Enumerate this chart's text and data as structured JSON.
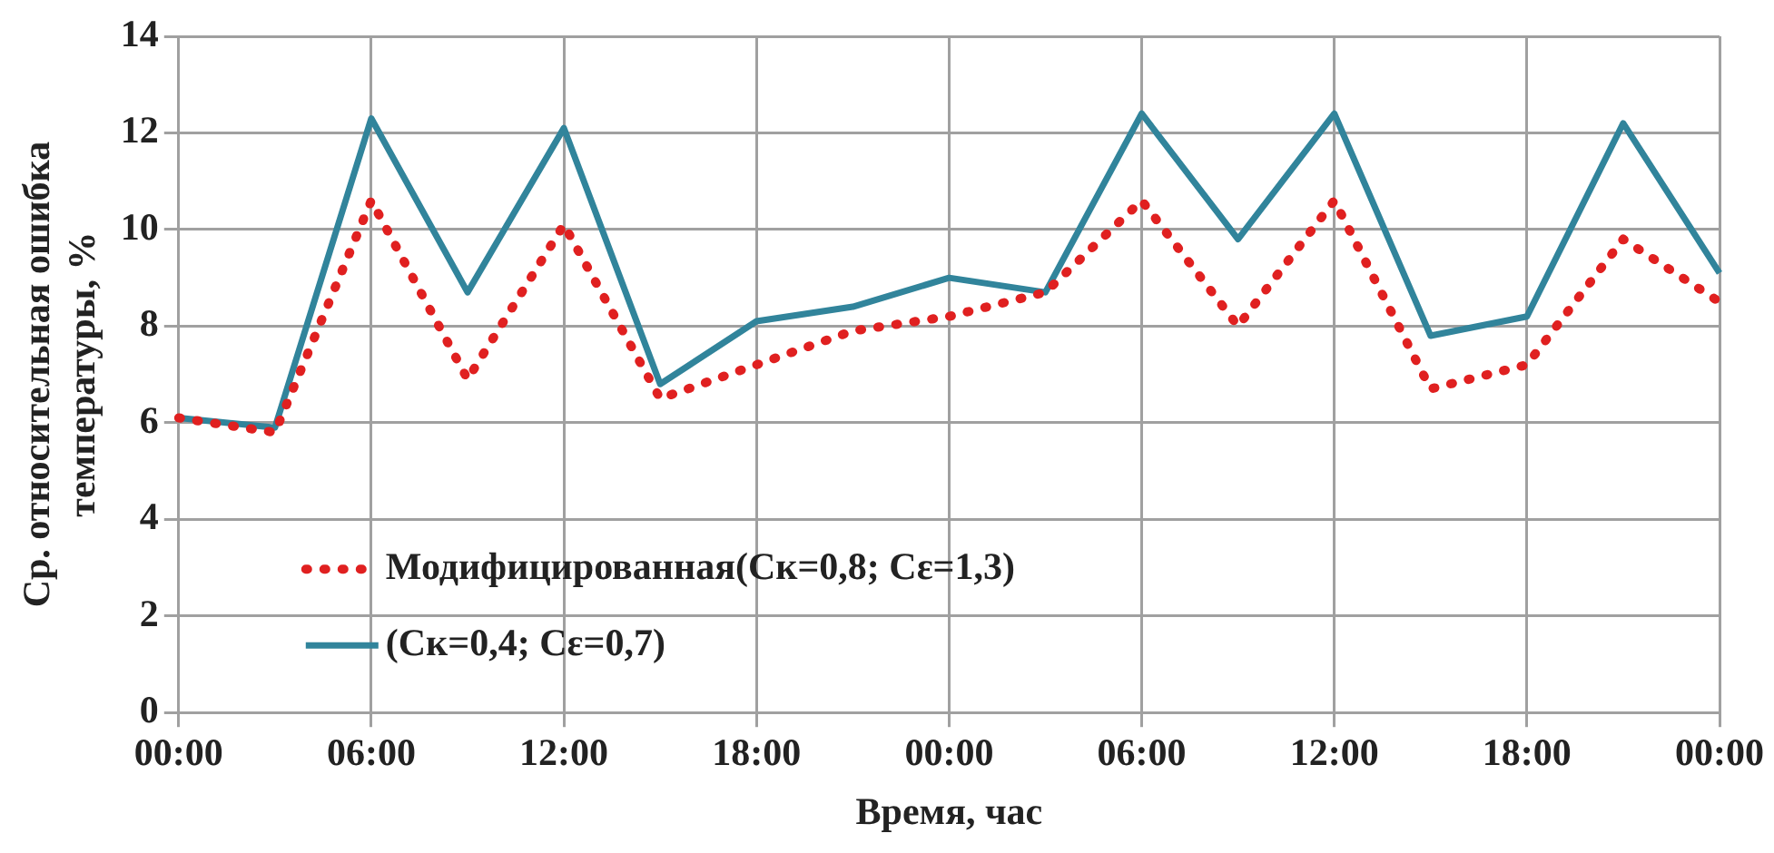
{
  "chart_data": {
    "type": "line",
    "xlabel": "Время, час",
    "ylabel": "Ср. относительная ошибка\nтемпературы, %",
    "categories": [
      "00:00",
      null,
      "06:00",
      null,
      "12:00",
      null,
      "18:00",
      null,
      "00:00",
      null,
      "06:00",
      null,
      "12:00",
      null,
      "18:00",
      null,
      "00:00"
    ],
    "series": [
      {
        "name": "Модифицированная(Ск=0,8; Сε=1,3)",
        "color": "#e02020",
        "line_style": "dotted",
        "values": [
          6.1,
          5.8,
          10.6,
          6.9,
          10.1,
          6.5,
          7.2,
          7.9,
          8.2,
          8.7,
          10.6,
          8.0,
          10.6,
          6.7,
          7.2,
          9.8,
          8.5
        ]
      },
      {
        "name": "(Ск=0,4; Сε=0,7)",
        "color": "#31849b",
        "line_style": "solid",
        "values": [
          6.1,
          5.9,
          12.3,
          8.7,
          12.1,
          6.8,
          8.1,
          8.4,
          9.0,
          8.7,
          12.4,
          9.8,
          12.4,
          7.8,
          8.2,
          12.2,
          9.1
        ]
      }
    ],
    "ylim": [
      0,
      14
    ],
    "yticks": [
      0,
      2,
      4,
      6,
      8,
      10,
      12,
      14
    ],
    "grid": true,
    "legend": "bottom left",
    "marker": "none"
  }
}
